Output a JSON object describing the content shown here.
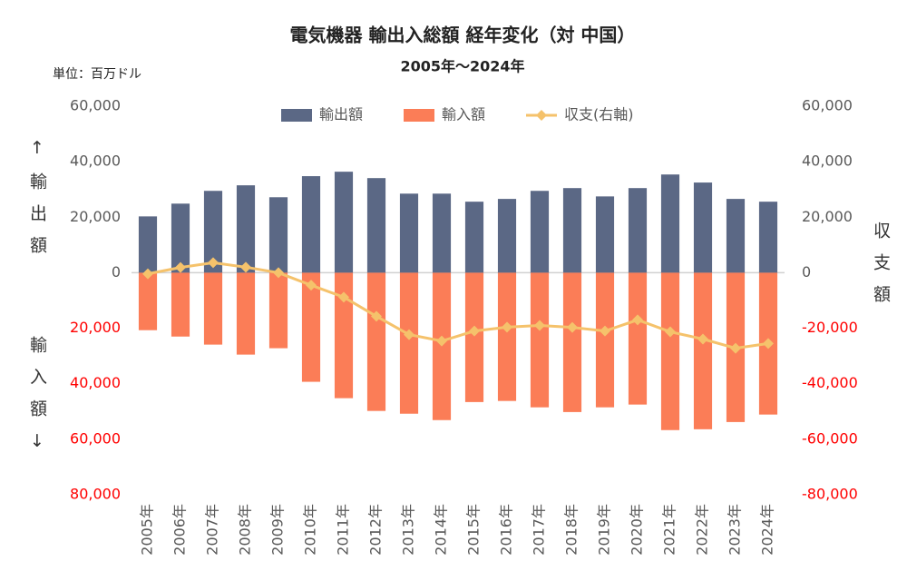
{
  "chart_data": {
    "type": "bar",
    "title": "電気機器 輸出入総額 経年変化（対 中国）",
    "subtitle": "2005年～2024年",
    "unit_label": "単位：百万ドル",
    "y_label_top": "↑輸出額",
    "y_label_bottom": "輸入額↓",
    "y2_label": "収支額",
    "categories": [
      "2005年",
      "2006年",
      "2007年",
      "2008年",
      "2009年",
      "2010年",
      "2011年",
      "2012年",
      "2013年",
      "2014年",
      "2015年",
      "2016年",
      "2017年",
      "2018年",
      "2019年",
      "2020年",
      "2021年",
      "2022年",
      "2023年",
      "2024年"
    ],
    "series": [
      {
        "name": "輸出額",
        "color": "#5b6885",
        "type": "bar",
        "values": [
          20300,
          24900,
          29500,
          31500,
          27200,
          34800,
          36400,
          34100,
          28500,
          28500,
          25600,
          26600,
          29500,
          30500,
          27500,
          30500,
          35400,
          32500,
          26600,
          25600
        ]
      },
      {
        "name": "輸入額",
        "color": "#fb7d57",
        "type": "bar",
        "values": [
          -20700,
          -23000,
          -25900,
          -29500,
          -27200,
          -39300,
          -45200,
          -49800,
          -50800,
          -53100,
          -46600,
          -46200,
          -48500,
          -50200,
          -48500,
          -47500,
          -56700,
          -56400,
          -53800,
          -51100
        ]
      },
      {
        "name": "収支(右軸)",
        "color": "#f5c26b",
        "type": "line",
        "axis": "y2",
        "values": [
          -400,
          1900,
          3600,
          2000,
          0,
          -4500,
          -8800,
          -15700,
          -22300,
          -24600,
          -21000,
          -19600,
          -19000,
          -19700,
          -21000,
          -17000,
          -21300,
          -23900,
          -27200,
          -25500
        ]
      }
    ],
    "ylim": [
      -80000,
      60000
    ],
    "yticks": [
      {
        "value": 60000,
        "label": "60,000"
      },
      {
        "value": 40000,
        "label": "40,000"
      },
      {
        "value": 20000,
        "label": "20,000"
      },
      0,
      {
        "value": -20000,
        "label": "20,000"
      },
      {
        "value": -40000,
        "label": "40,000"
      },
      {
        "value": -60000,
        "label": "60,000"
      },
      {
        "value": -80000,
        "label": "80,000"
      }
    ],
    "y2lim": [
      -80000,
      60000
    ],
    "y2ticks": [
      {
        "value": 60000,
        "label": "60,000"
      },
      {
        "value": 40000,
        "label": "40,000"
      },
      {
        "value": 20000,
        "label": "20,000"
      },
      0,
      {
        "value": -20000,
        "label": "-20,000"
      },
      {
        "value": -40000,
        "label": "-40,000"
      },
      {
        "value": -60000,
        "label": "-60,000"
      },
      {
        "value": -80000,
        "label": "-80,000"
      }
    ],
    "negative_tick_color": "#ff0000",
    "legend": "top"
  }
}
